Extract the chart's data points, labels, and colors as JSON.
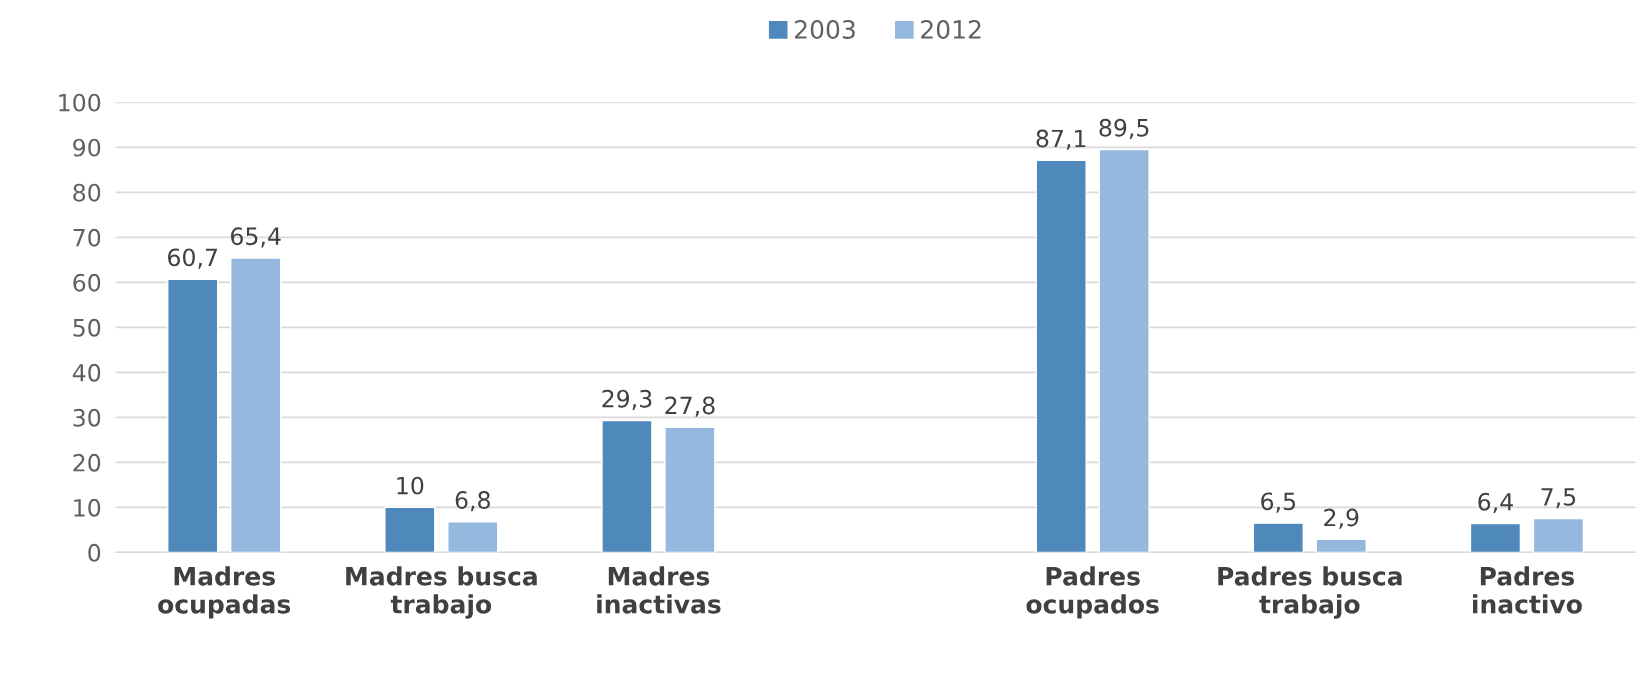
{
  "chart_data": {
    "type": "bar",
    "categories": [
      "Madres\nocupadas",
      "Madres busca\ntrabajo",
      "Madres\ninactivas",
      null,
      "Padres\nocupados",
      "Padres busca\ntrabajo",
      "Padres\ninactivo"
    ],
    "series": [
      {
        "name": "2003",
        "color": "#4f88bb",
        "values": [
          60.7,
          10,
          29.3,
          null,
          87.1,
          6.5,
          6.4
        ],
        "value_labels": [
          "60,7",
          "10",
          "29,3",
          null,
          "87,1",
          "6,5",
          "6,4"
        ]
      },
      {
        "name": "2012",
        "color": "#95b8df",
        "values": [
          65.4,
          6.8,
          27.8,
          null,
          89.5,
          2.9,
          7.5
        ],
        "value_labels": [
          "65,4",
          "6,8",
          "27,8",
          null,
          "89,5",
          "2,9",
          "7,5"
        ]
      }
    ],
    "ylim": [
      0,
      100
    ],
    "yticks": [
      0,
      10,
      20,
      30,
      40,
      50,
      60,
      70,
      80,
      90,
      100
    ],
    "grid": "y",
    "legend": "top"
  }
}
